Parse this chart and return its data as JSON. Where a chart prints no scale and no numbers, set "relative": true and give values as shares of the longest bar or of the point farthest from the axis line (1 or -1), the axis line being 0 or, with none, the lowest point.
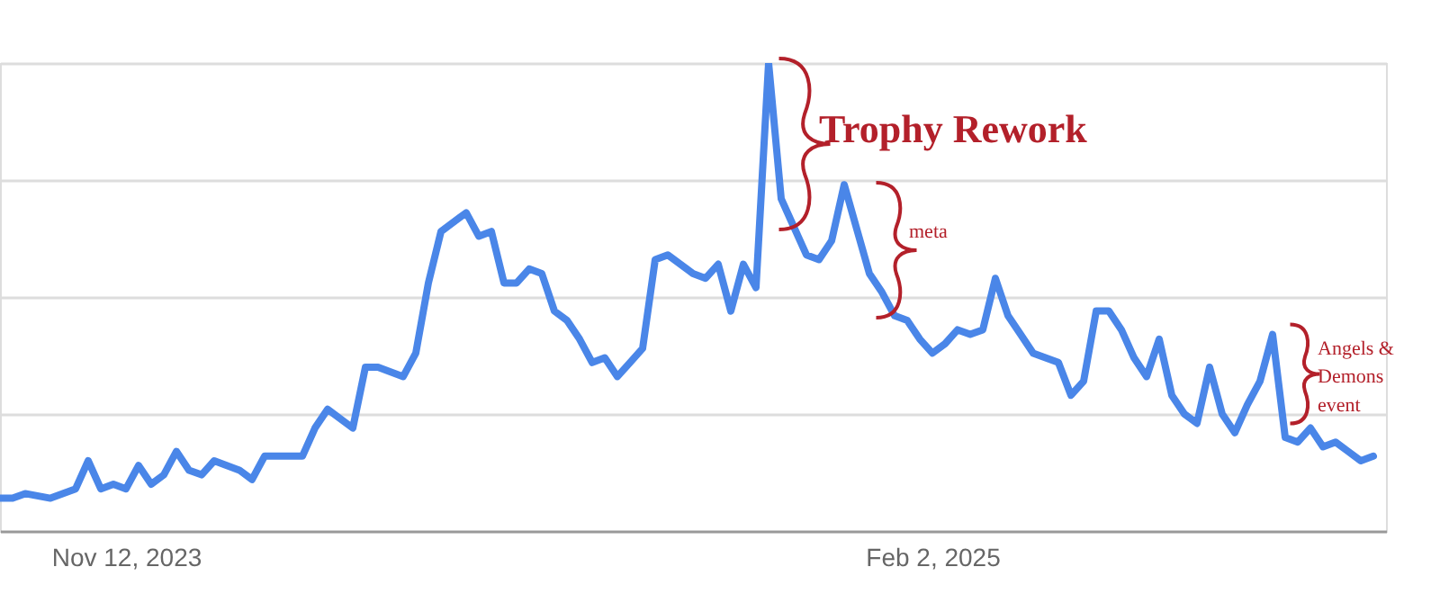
{
  "chart_data": {
    "type": "line",
    "relative": true,
    "color": "#4a86e8",
    "x": [
      "2023-09-03",
      "2023-09-10",
      "2023-09-17",
      "2023-10-01",
      "2023-10-15",
      "2023-10-22",
      "2023-10-29",
      "2023-11-05",
      "2023-11-12",
      "2023-11-19",
      "2023-11-26",
      "2023-12-03",
      "2023-12-10",
      "2023-12-17",
      "2023-12-24",
      "2023-12-31",
      "2024-01-07",
      "2024-01-14",
      "2024-01-21",
      "2024-01-28",
      "2024-02-11",
      "2024-02-18",
      "2024-02-25",
      "2024-03-03",
      "2024-03-17",
      "2024-03-24",
      "2024-03-31",
      "2024-04-14",
      "2024-04-21",
      "2024-04-28",
      "2024-05-05",
      "2024-05-19",
      "2024-05-26",
      "2024-06-02",
      "2024-06-09",
      "2024-06-16",
      "2024-06-23",
      "2024-06-30",
      "2024-07-07",
      "2024-07-14",
      "2024-07-21",
      "2024-07-28",
      "2024-08-04",
      "2024-08-11",
      "2024-08-18",
      "2024-08-25",
      "2024-09-01",
      "2024-09-08",
      "2024-09-22",
      "2024-09-29",
      "2024-10-06",
      "2024-10-13",
      "2024-10-20",
      "2024-10-27",
      "2024-11-03",
      "2024-11-10",
      "2024-11-17",
      "2024-11-24",
      "2024-12-01",
      "2024-12-08",
      "2024-12-15",
      "2024-12-29",
      "2025-01-05",
      "2025-01-12",
      "2025-01-19",
      "2025-01-26",
      "2025-02-02",
      "2025-02-09",
      "2025-02-16",
      "2025-02-23",
      "2025-03-02",
      "2025-03-09",
      "2025-03-16",
      "2025-03-23",
      "2025-03-30",
      "2025-04-13",
      "2025-04-20",
      "2025-04-27",
      "2025-05-04",
      "2025-05-11",
      "2025-05-18",
      "2025-05-25",
      "2025-06-01",
      "2025-06-08",
      "2025-06-15",
      "2025-06-22",
      "2025-06-29",
      "2025-07-06",
      "2025-07-13",
      "2025-07-20",
      "2025-07-27",
      "2025-08-03",
      "2025-08-10",
      "2025-08-17",
      "2025-08-24",
      "2025-08-31",
      "2025-09-07",
      "2025-09-14",
      "2025-09-21",
      "2025-09-28",
      "2025-10-05"
    ],
    "values": [
      0.07,
      0.07,
      0.08,
      0.07,
      0.09,
      0.15,
      0.09,
      0.1,
      0.09,
      0.14,
      0.1,
      0.12,
      0.17,
      0.13,
      0.12,
      0.15,
      0.14,
      0.13,
      0.11,
      0.16,
      0.16,
      0.16,
      0.22,
      0.26,
      0.22,
      0.35,
      0.35,
      0.33,
      0.38,
      0.53,
      0.64,
      0.68,
      0.63,
      0.64,
      0.53,
      0.53,
      0.56,
      0.55,
      0.47,
      0.45,
      0.41,
      0.36,
      0.37,
      0.33,
      0.36,
      0.39,
      0.58,
      0.59,
      0.55,
      0.54,
      0.57,
      0.47,
      0.57,
      0.52,
      1.0,
      0.71,
      0.65,
      0.59,
      0.58,
      0.62,
      0.74,
      0.55,
      0.51,
      0.46,
      0.45,
      0.41,
      0.38,
      0.4,
      0.43,
      0.42,
      0.43,
      0.54,
      0.46,
      0.42,
      0.38,
      0.36,
      0.29,
      0.32,
      0.47,
      0.47,
      0.43,
      0.37,
      0.33,
      0.41,
      0.29,
      0.25,
      0.23,
      0.35,
      0.25,
      0.21,
      0.27,
      0.32,
      0.42,
      0.2,
      0.19,
      0.22,
      0.18,
      0.19,
      0.17,
      0.15,
      0.16
    ],
    "xlim": [
      "2023-09-03",
      "2025-10-12"
    ],
    "xticks": [
      {
        "value": "2023-11-12",
        "label": "Nov 12, 2023"
      },
      {
        "value": "2025-02-02",
        "label": "Feb 2, 2025"
      }
    ],
    "grid": "y",
    "annotations": [
      {
        "text": "Trophy Rework",
        "x": "2024-11-03",
        "y": 1.0
      },
      {
        "text": "meta",
        "x": "2024-12-29",
        "y": 0.55
      },
      {
        "text": "Angels & Demons event",
        "x": "2025-08-10",
        "y": 0.42
      }
    ]
  }
}
